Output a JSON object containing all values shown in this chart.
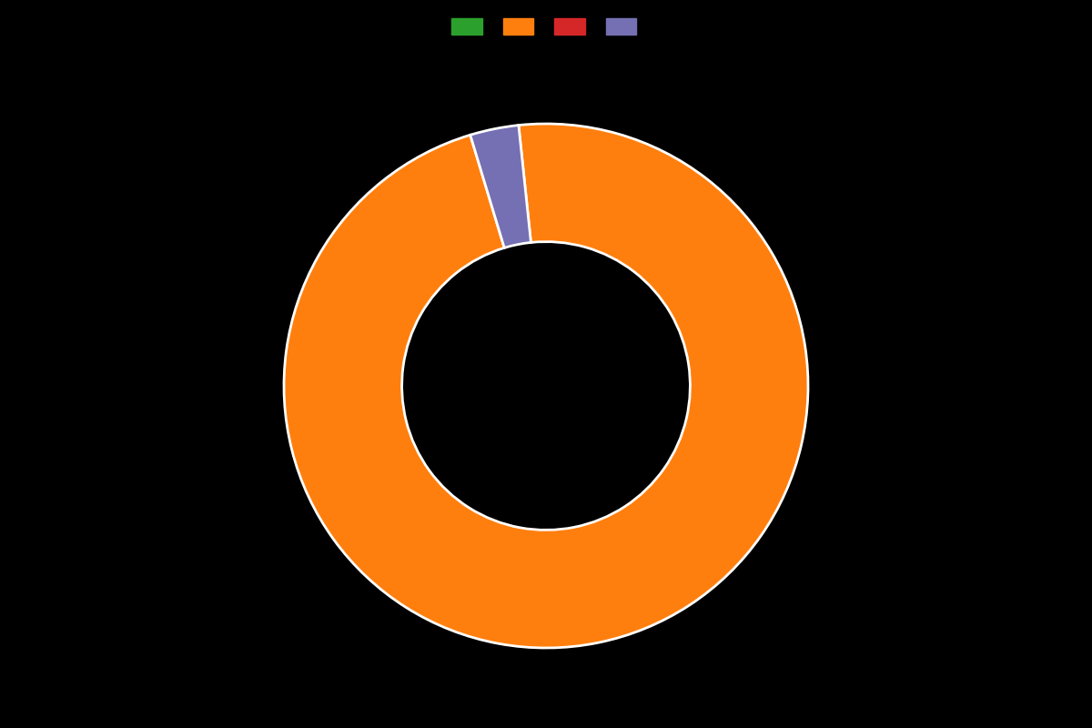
{
  "slices": [
    97.0,
    3.0
  ],
  "colors": [
    "#ff7f0e",
    "#7570b3"
  ],
  "all_legend_colors": [
    "#2ca02c",
    "#ff7f0e",
    "#d62728",
    "#7570b3"
  ],
  "legend_labels": [
    "",
    "",
    "",
    ""
  ],
  "background_color": "#000000",
  "wedge_edge_color": "#ffffff",
  "wedge_edge_width": 2.0,
  "donut_width": 0.45,
  "startangle": 96,
  "counterclock": false
}
